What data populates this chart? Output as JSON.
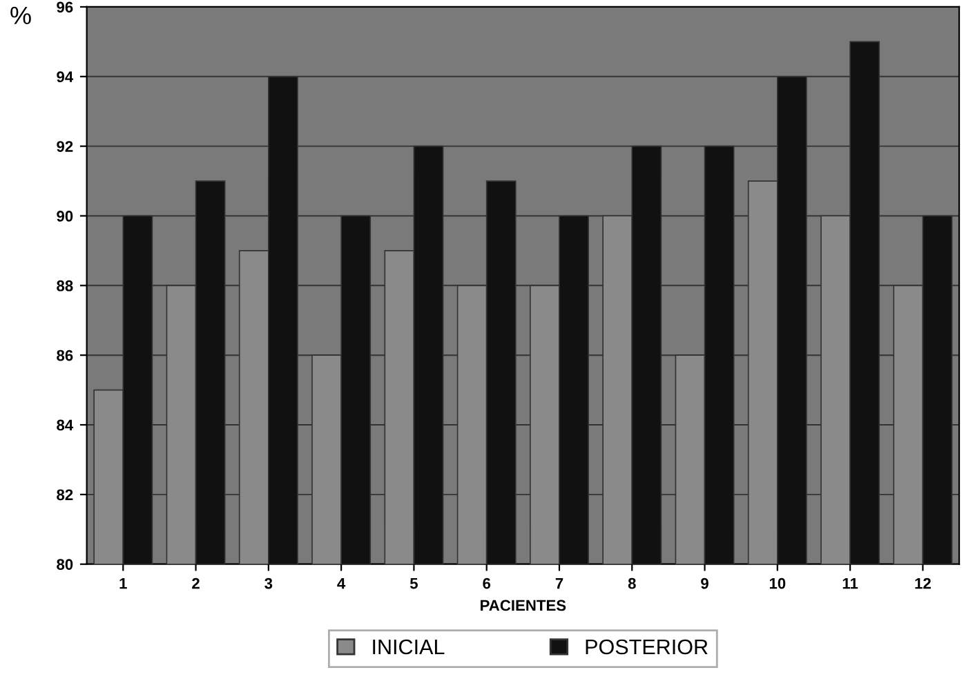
{
  "chart_data": {
    "type": "bar",
    "xlabel": "PACIENTES",
    "ylabel": "%",
    "categories": [
      "1",
      "2",
      "3",
      "4",
      "5",
      "6",
      "7",
      "8",
      "9",
      "10",
      "11",
      "12"
    ],
    "series": [
      {
        "name": "INICIAL",
        "color": "#8a8a8a",
        "values": [
          85,
          88,
          89,
          86,
          89,
          88,
          88,
          90,
          86,
          91,
          90,
          88
        ]
      },
      {
        "name": "POSTERIOR",
        "color": "#111111",
        "values": [
          90,
          91,
          94,
          90,
          92,
          91,
          90,
          92,
          92,
          94,
          95,
          90
        ]
      }
    ],
    "ylim": [
      80,
      96
    ],
    "yticks": [
      80,
      82,
      84,
      86,
      88,
      90,
      92,
      94,
      96
    ],
    "grid": "y",
    "legend": "bottom"
  }
}
